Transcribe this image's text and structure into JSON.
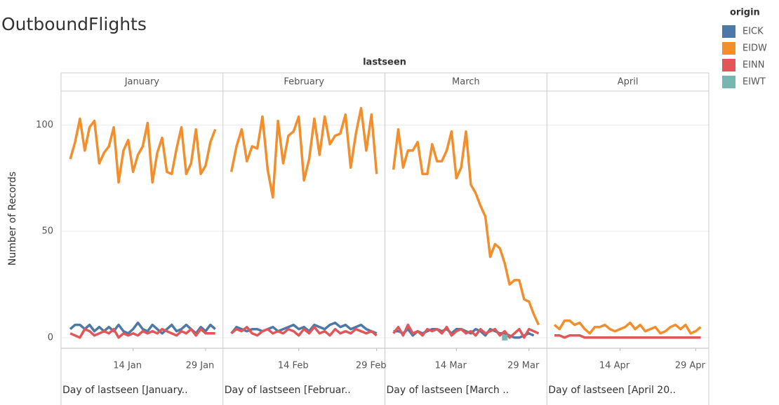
{
  "chart_data": {
    "type": "line",
    "title": "OutboundFlights",
    "column_header": "lastseen",
    "y_label": "Number of Records",
    "ylim": [
      -5,
      116
    ],
    "yticks": [
      0,
      50,
      100
    ],
    "grid": true,
    "legend": {
      "title": "origin",
      "position": "right"
    },
    "facets": [
      {
        "label": "January",
        "axis_title": "Day of lastseen [January..",
        "xlim": [
          -0.9,
          32.6
        ],
        "xticks": [
          {
            "value": 14,
            "label": "14 Jan"
          },
          {
            "value": 29,
            "label": "29 Jan"
          }
        ],
        "x": [
          1,
          2,
          3,
          4,
          5,
          6,
          7,
          8,
          9,
          10,
          11,
          12,
          13,
          14,
          15,
          16,
          17,
          18,
          19,
          20,
          21,
          22,
          23,
          24,
          25,
          26,
          27,
          28,
          29,
          30,
          31
        ]
      },
      {
        "label": "February",
        "axis_title": "Day of lastseen [Februar..",
        "xlim": [
          -0.6,
          30.6
        ],
        "xticks": [
          {
            "value": 14,
            "label": "14 Feb"
          },
          {
            "value": 29,
            "label": "29 Feb"
          }
        ],
        "x": [
          1,
          2,
          3,
          4,
          5,
          6,
          7,
          8,
          9,
          10,
          11,
          12,
          13,
          14,
          15,
          16,
          17,
          18,
          19,
          20,
          21,
          22,
          23,
          24,
          25,
          26,
          27,
          28,
          29
        ]
      },
      {
        "label": "March",
        "axis_title": "Day of lastseen [March ..",
        "xlim": [
          -0.75,
          32.7
        ],
        "xticks": [
          {
            "value": 14,
            "label": "14 Mar"
          },
          {
            "value": 29,
            "label": "29 Mar"
          }
        ],
        "x": [
          1,
          2,
          3,
          4,
          5,
          6,
          7,
          8,
          9,
          10,
          11,
          12,
          13,
          14,
          15,
          16,
          17,
          18,
          19,
          20,
          21,
          22,
          23,
          24,
          25,
          26,
          27,
          28,
          29,
          30,
          31
        ]
      },
      {
        "label": "April",
        "axis_title": "Day of lastseen [April 20..",
        "xlim": [
          -0.5,
          31.6
        ],
        "xticks": [
          {
            "value": 14,
            "label": "14 Apr"
          },
          {
            "value": 29,
            "label": "29 Apr"
          }
        ],
        "x": [
          1,
          2,
          3,
          4,
          5,
          6,
          7,
          8,
          9,
          10,
          11,
          12,
          13,
          14,
          15,
          16,
          17,
          18,
          19,
          20,
          21,
          22,
          23,
          24,
          25,
          26,
          27,
          28,
          29,
          30
        ]
      }
    ],
    "series": [
      {
        "name": "EICK",
        "color": "#4e79a7",
        "values": [
          [
            4,
            6,
            6,
            4,
            6,
            3,
            5,
            3,
            5,
            3,
            6,
            3,
            2,
            4,
            7,
            4,
            3,
            6,
            4,
            2,
            4,
            6,
            3,
            4,
            6,
            4,
            2,
            5,
            3,
            6,
            4
          ],
          [
            2,
            5,
            4,
            3,
            4,
            4,
            3,
            4,
            5,
            3,
            4,
            5,
            6,
            4,
            5,
            3,
            6,
            5,
            4,
            6,
            7,
            5,
            6,
            4,
            5,
            6,
            4,
            3,
            2
          ],
          [
            3,
            3,
            2,
            4,
            1,
            3,
            2,
            3,
            4,
            4,
            3,
            4,
            2,
            4,
            4,
            3,
            2,
            4,
            3,
            1,
            4,
            3,
            2,
            2,
            1,
            0,
            0,
            1,
            2,
            1,
            null
          ],
          [
            null,
            null,
            null,
            null,
            null,
            null,
            null,
            null,
            null,
            null,
            null,
            null,
            null,
            null,
            null,
            null,
            null,
            null,
            null,
            null,
            null,
            null,
            null,
            null,
            null,
            null,
            null,
            null,
            null,
            null
          ]
        ]
      },
      {
        "name": "EIDW",
        "color": "#f28e2b",
        "values": [
          [
            84,
            92,
            103,
            88,
            99,
            102,
            82,
            87,
            90,
            99,
            73,
            88,
            93,
            78,
            86,
            90,
            101,
            73,
            87,
            94,
            78,
            77,
            89,
            99,
            77,
            82,
            98,
            77,
            81,
            92,
            98
          ],
          [
            78,
            90,
            98,
            83,
            90,
            89,
            104,
            79,
            66,
            102,
            82,
            95,
            97,
            104,
            74,
            84,
            103,
            86,
            104,
            91,
            95,
            96,
            105,
            80,
            96,
            108,
            88,
            105,
            77
          ],
          [
            79,
            98,
            80,
            88,
            88,
            92,
            77,
            77,
            91,
            83,
            83,
            88,
            97,
            75,
            80,
            97,
            72,
            68,
            62,
            57,
            38,
            44,
            42,
            35,
            25,
            27,
            27,
            18,
            17,
            11,
            6
          ],
          [
            6,
            4,
            8,
            8,
            6,
            7,
            4,
            2,
            5,
            5,
            6,
            4,
            3,
            4,
            5,
            7,
            4,
            6,
            3,
            4,
            5,
            2,
            3,
            5,
            6,
            4,
            6,
            2,
            3,
            5
          ]
        ]
      },
      {
        "name": "EINN",
        "color": "#e15759",
        "values": [
          [
            2,
            1,
            0,
            4,
            3,
            1,
            2,
            3,
            2,
            4,
            0,
            2,
            1,
            2,
            1,
            3,
            2,
            3,
            2,
            4,
            3,
            2,
            1,
            3,
            2,
            4,
            1,
            4,
            2,
            2,
            2
          ],
          [
            2,
            4,
            3,
            5,
            2,
            1,
            3,
            4,
            2,
            3,
            2,
            4,
            3,
            1,
            4,
            2,
            5,
            2,
            3,
            1,
            4,
            2,
            3,
            2,
            4,
            3,
            2,
            3,
            1
          ],
          [
            2,
            5,
            1,
            6,
            2,
            3,
            1,
            4,
            3,
            4,
            2,
            5,
            1,
            3,
            4,
            2,
            3,
            1,
            4,
            2,
            3,
            4,
            1,
            3,
            0,
            2,
            4,
            0,
            4,
            3,
            2
          ],
          [
            1,
            1,
            0,
            1,
            1,
            1,
            0,
            0,
            0,
            0,
            0,
            0,
            0,
            0,
            0,
            0,
            0,
            0,
            0,
            0,
            0,
            0,
            0,
            0,
            0,
            0,
            0,
            0,
            0,
            0
          ]
        ]
      },
      {
        "name": "EIWT",
        "color": "#76b7b2",
        "values": [
          [
            null,
            null,
            null,
            null,
            null,
            null,
            null,
            null,
            null,
            null,
            null,
            null,
            null,
            null,
            null,
            null,
            null,
            null,
            null,
            null,
            null,
            null,
            null,
            null,
            null,
            null,
            null,
            null,
            null,
            null,
            null
          ],
          [
            null,
            null,
            null,
            null,
            null,
            null,
            null,
            null,
            null,
            null,
            null,
            null,
            null,
            null,
            null,
            null,
            null,
            null,
            null,
            null,
            null,
            null,
            null,
            null,
            null,
            null,
            null,
            null,
            null
          ],
          [
            null,
            null,
            null,
            null,
            null,
            null,
            null,
            null,
            null,
            null,
            null,
            null,
            null,
            null,
            null,
            null,
            null,
            null,
            null,
            null,
            null,
            null,
            null,
            0,
            null,
            null,
            null,
            null,
            null,
            null,
            null
          ],
          [
            null,
            null,
            null,
            null,
            null,
            null,
            null,
            null,
            null,
            null,
            null,
            null,
            null,
            null,
            null,
            null,
            null,
            null,
            null,
            null,
            null,
            null,
            null,
            null,
            null,
            null,
            null,
            null,
            null,
            null
          ]
        ]
      }
    ]
  }
}
